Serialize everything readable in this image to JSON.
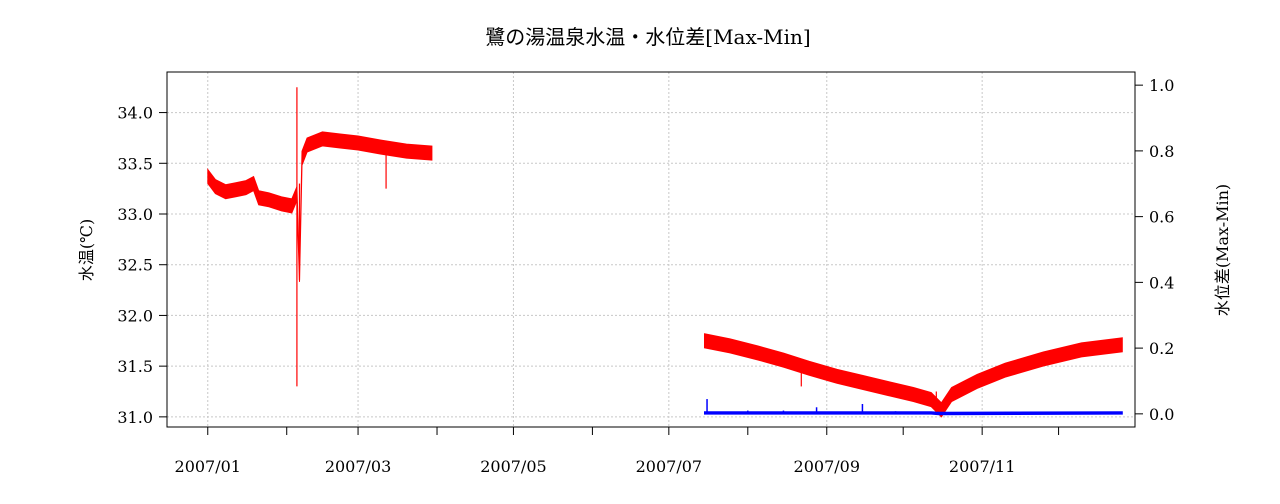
{
  "chart_data": {
    "type": "line",
    "title": "鷺の湯温泉水温・水位差[Max-Min]",
    "ylabel": "水温(℃)",
    "ylabel_right": "水位差(Max-Min)",
    "grid": true,
    "x_ticks": [
      "2007/01",
      "2007/02",
      "2007/03",
      "2007/04",
      "2007/05",
      "2007/06",
      "2007/07",
      "2007/08",
      "2007/09",
      "2007/10",
      "2007/11",
      "2007/12"
    ],
    "x_tick_labels": [
      "2007/01",
      "2007/03",
      "2007/05",
      "2007/07",
      "2007/09",
      "2007/11"
    ],
    "ylim": [
      30.9,
      34.4
    ],
    "y_ticks": [
      "31.0",
      "31.5",
      "32.0",
      "32.5",
      "33.0",
      "33.5",
      "34.0"
    ],
    "ylim_right": [
      -0.04,
      1.04
    ],
    "y_ticks_right": [
      "0.0",
      "0.2",
      "0.4",
      "0.6",
      "0.8",
      "1.0"
    ],
    "xlim": [
      "2006-12-16",
      "2007-12-31"
    ],
    "series": [
      {
        "axis": "left",
        "color": "#ff0000",
        "segments": [
          [
            [
              "2007-01-01",
              33.37
            ],
            [
              "2007-01-04",
              33.27
            ],
            [
              "2007-01-08",
              33.22
            ],
            [
              "2007-01-12",
              33.24
            ],
            [
              "2007-01-16",
              33.26
            ],
            [
              "2007-01-19",
              33.3
            ],
            [
              "2007-01-21",
              33.16
            ],
            [
              "2007-01-25",
              33.14
            ],
            [
              "2007-01-30",
              33.1
            ],
            [
              "2007-02-03",
              33.08
            ],
            [
              "2007-02-05",
              33.2
            ],
            [
              "2007-02-06",
              32.4
            ],
            [
              "2007-02-07",
              33.55
            ],
            [
              "2007-02-09",
              33.68
            ],
            [
              "2007-02-15",
              33.74
            ],
            [
              "2007-02-22",
              33.72
            ],
            [
              "2007-03-01",
              33.7
            ],
            [
              "2007-03-10",
              33.66
            ],
            [
              "2007-03-20",
              33.62
            ],
            [
              "2007-03-30",
              33.6
            ]
          ],
          [
            [
              "2007-07-15",
              31.75
            ],
            [
              "2007-07-25",
              31.7
            ],
            [
              "2007-08-05",
              31.63
            ],
            [
              "2007-08-15",
              31.56
            ],
            [
              "2007-08-25",
              31.48
            ],
            [
              "2007-09-05",
              31.4
            ],
            [
              "2007-09-15",
              31.34
            ],
            [
              "2007-09-25",
              31.28
            ],
            [
              "2007-10-05",
              31.22
            ],
            [
              "2007-10-12",
              31.17
            ],
            [
              "2007-10-16",
              31.07
            ],
            [
              "2007-10-20",
              31.22
            ],
            [
              "2007-10-30",
              31.35
            ],
            [
              "2007-11-10",
              31.46
            ],
            [
              "2007-11-25",
              31.57
            ],
            [
              "2007-12-10",
              31.66
            ],
            [
              "2007-12-26",
              31.71
            ]
          ]
        ]
      },
      {
        "axis": "right",
        "color": "#0000ff",
        "segments": [
          [
            [
              "2007-07-15",
              0.003
            ],
            [
              "2007-10-12",
              0.003
            ],
            [
              "2007-10-15",
              0.001
            ],
            [
              "2007-12-26",
              0.003
            ]
          ]
        ],
        "spikes": [
          [
            "2007-07-16",
            0.045
          ],
          [
            "2007-08-01",
            0.01
          ],
          [
            "2007-08-15",
            0.01
          ],
          [
            "2007-08-28",
            0.02
          ],
          [
            "2007-09-15",
            0.03
          ],
          [
            "2007-09-28",
            0.008
          ],
          [
            "2007-11-10",
            0.006
          ],
          [
            "2007-12-10",
            0.006
          ]
        ]
      }
    ],
    "annotations_spikes_left": [
      [
        "2007-02-05",
        31.3,
        34.25
      ],
      [
        "2007-02-06",
        32.35,
        33.3
      ],
      [
        "2007-03-12",
        33.25,
        33.6
      ],
      [
        "2007-08-22",
        31.3,
        31.5
      ],
      [
        "2007-10-14",
        31.05,
        31.25
      ]
    ]
  }
}
